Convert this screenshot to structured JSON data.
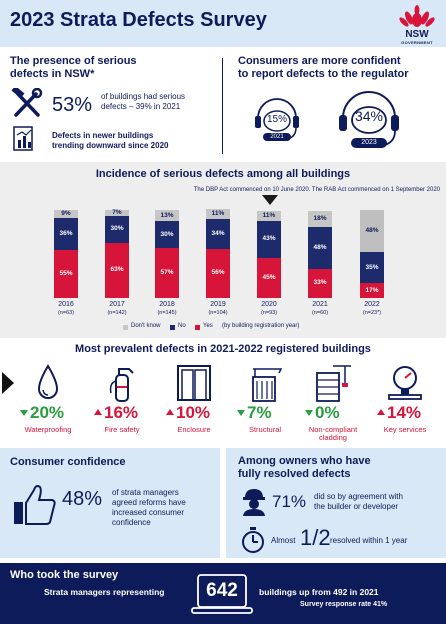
{
  "header": {
    "title": "2023 Strata Defects Survey",
    "logo_text": "NSW",
    "logo_sub": "GOVERNMENT"
  },
  "presence": {
    "heading_line1": "The presence of serious",
    "heading_line2": "defects in NSW*",
    "stat": "53%",
    "stat_text_line1": "of buildings had serious",
    "stat_text_line2": "defects – 39% in 2021",
    "trend_line1": "Defects in newer buildings",
    "trend_line2": "trending downward since 2020"
  },
  "confidence_top": {
    "heading_line1": "Consumers are more confident",
    "heading_line2": "to report defects to the regulator",
    "items": [
      {
        "pct": "15%",
        "year": "2021"
      },
      {
        "pct": "34%",
        "year": "2023"
      }
    ]
  },
  "chart_data": {
    "type": "bar",
    "title": "Incidence of serious defects among all buildings",
    "annotation": "The DBP Act commenced on 10 June 2020. The RAB Act commenced on 1 September 2020",
    "categories": [
      "2016",
      "2017",
      "2018",
      "2019",
      "2020",
      "2021",
      "2022"
    ],
    "sample_sizes": [
      "(n=63)",
      "(n=142)",
      "(n=145)",
      "(n=104)",
      "(n=93)",
      "(n=60)",
      "(n=23*)"
    ],
    "series": [
      {
        "name": "Yes",
        "values": [
          55,
          63,
          57,
          56,
          45,
          33,
          17
        ],
        "labels": [
          "55%",
          "63%",
          "57%",
          "56%",
          "45%",
          "33%",
          "17%"
        ]
      },
      {
        "name": "No",
        "values": [
          36,
          30,
          30,
          34,
          43,
          48,
          35
        ],
        "labels": [
          "36%",
          "30%",
          "30%",
          "34%",
          "43%",
          "48%",
          "35%"
        ]
      },
      {
        "name": "Don't know",
        "values": [
          9,
          7,
          13,
          11,
          11,
          18,
          48
        ],
        "labels": [
          "9%",
          "7%",
          "13%",
          "11%",
          "11%",
          "18%",
          "48%"
        ]
      }
    ],
    "legend_note": "(by building registration year)",
    "colors": {
      "Yes": "#d7153a",
      "No": "#1d2a6b",
      "Don't know": "#c6c6c6",
      "Don't know 2022": "#bfbfbf"
    },
    "ylim": [
      0,
      100
    ]
  },
  "prevalent": {
    "title": "Most prevalent defects in 2021-2022 registered buildings",
    "items": [
      {
        "pct": "20%",
        "name": "Waterproofing",
        "direction": "down",
        "icon": "water-drop-icon"
      },
      {
        "pct": "16%",
        "name": "Fire safety",
        "direction": "up",
        "icon": "fire-extinguisher-icon"
      },
      {
        "pct": "10%",
        "name": "Enclosure",
        "direction": "up",
        "icon": "door-icon"
      },
      {
        "pct": "7%",
        "name": "Structural",
        "direction": "down",
        "icon": "building-crane-icon"
      },
      {
        "pct": "0%",
        "name_line1": "Non-compliant",
        "name_line2": "cladding",
        "direction": "down",
        "icon": "cladding-crane-icon"
      },
      {
        "pct": "14%",
        "name": "Key services",
        "direction": "up",
        "icon": "gauge-icon"
      }
    ]
  },
  "consumer_confidence": {
    "heading": "Consumer confidence",
    "stat": "48%",
    "text_line1": "of strata managers",
    "text_line2": "agreed reforms have",
    "text_line3": "increased consumer",
    "text_line4": "confidence"
  },
  "owners": {
    "heading_line1": "Among owners who have",
    "heading_line2": "fully resolved defects",
    "stat": "71%",
    "text_line1": "did so by agreement with",
    "text_line2": "the builder or developer",
    "almost": "Almost",
    "fraction": "1/2",
    "resolved": "resolved within 1 year"
  },
  "footer": {
    "heading": "Who took the survey",
    "left_text": "Strata managers representing",
    "number": "642",
    "right_text": "buildings up from 492 in 2021",
    "rate": "Survey response rate 41%"
  }
}
